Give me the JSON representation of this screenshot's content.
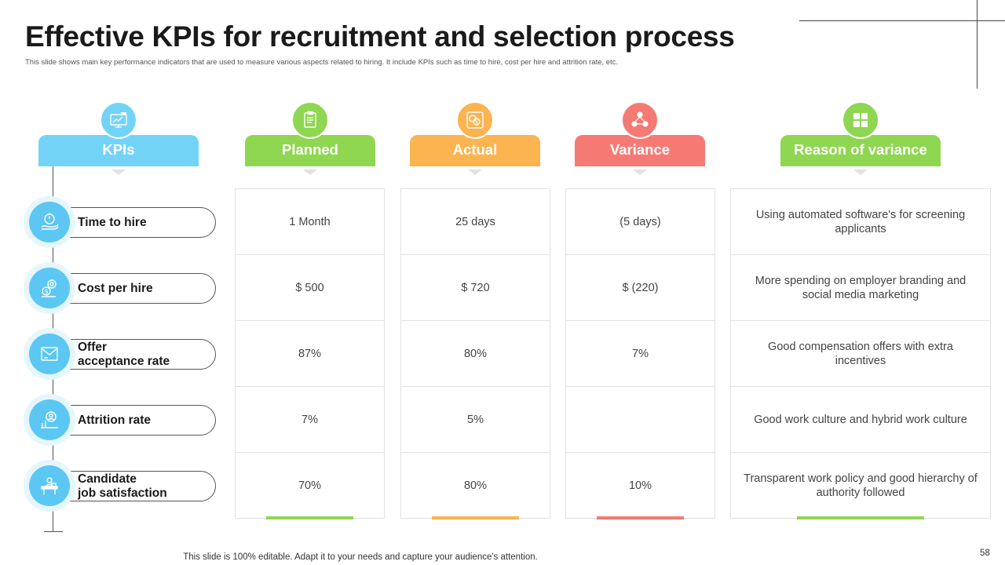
{
  "title": "Effective KPIs for recruitment and selection process",
  "subtitle": "This slide shows main key performance indicators that are used to measure various aspects related to hiring. It include KPIs such as time to hire, cost per hire and attrition rate, etc.",
  "headers": {
    "kpis": "KPIs",
    "planned": "Planned",
    "actual": "Actual",
    "variance": "Variance",
    "reason": "Reason of variance"
  },
  "colors": {
    "kpis": "#73d3f7",
    "planned": "#8fd651",
    "actual": "#fbb450",
    "variance": "#f57a74",
    "reason": "#8fd651"
  },
  "icons": {
    "kpis": "kpi-chart-icon",
    "planned": "clipboard-icon",
    "actual": "coins-icon",
    "variance": "people-network-icon",
    "reason": "grid-icon"
  },
  "rows": [
    {
      "kpi": "Time to hire",
      "icon": "stopwatch-hand-icon",
      "planned": "1 Month",
      "actual": "25 days",
      "variance": "(5 days)",
      "reason": "Using automated software's for screening applicants"
    },
    {
      "kpi": "Cost per hire",
      "icon": "money-gear-icon",
      "planned": "$ 500",
      "actual": "$ 720",
      "variance": "$ (220)",
      "reason": "More spending on employer branding and social media marketing"
    },
    {
      "kpi": "Offer\nacceptance rate",
      "icon": "offer-letter-icon",
      "planned": "87%",
      "actual": "80%",
      "variance": "7%",
      "reason": "Good compensation offers with extra incentives"
    },
    {
      "kpi": "Attrition rate",
      "icon": "person-chart-icon",
      "planned": "7%",
      "actual": "5%",
      "variance": "",
      "reason": "Good work culture and hybrid work culture"
    },
    {
      "kpi": "Candidate\njob satisfaction",
      "icon": "desk-worker-icon",
      "planned": "70%",
      "actual": "80%",
      "variance": "10%",
      "reason": "Transparent work policy and good hierarchy of authority followed"
    }
  ],
  "footer": "This slide is 100% editable. Adapt it to your needs and capture your audience's attention.",
  "page_number": "58"
}
